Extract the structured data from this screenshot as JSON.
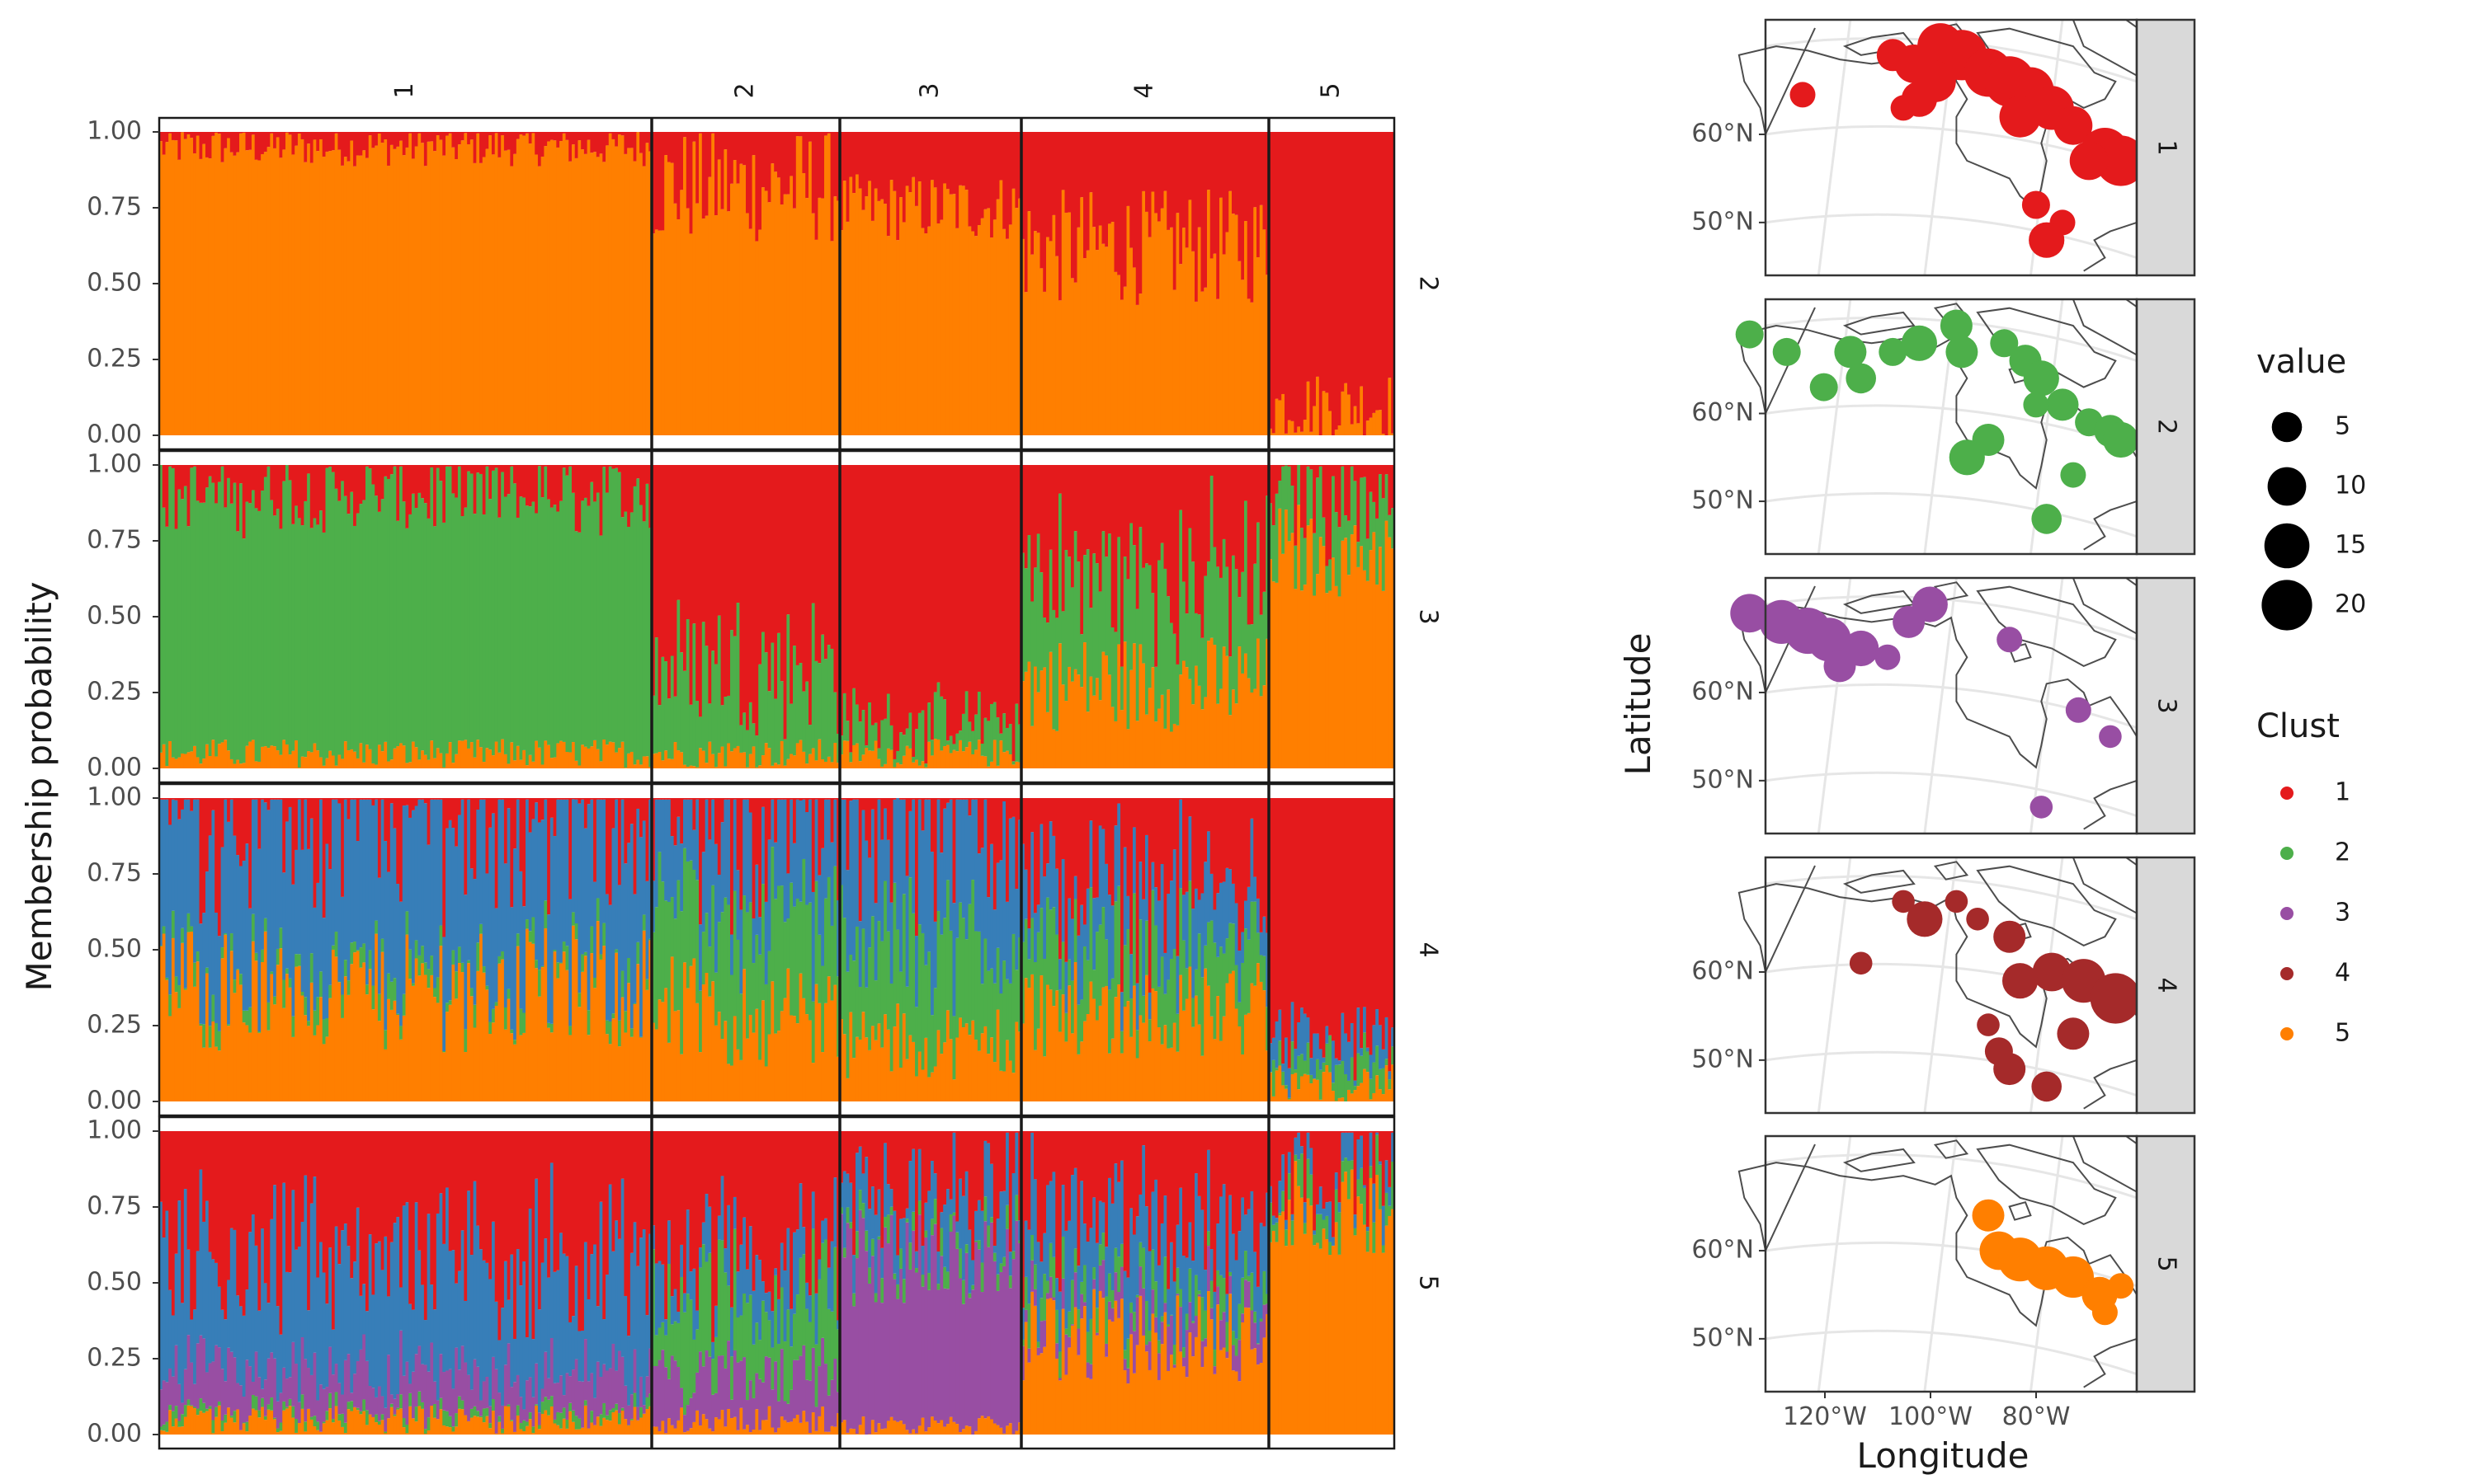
{
  "chart_data": [
    {
      "type": "bar",
      "subtype": "stacked-structure-plot",
      "ylabel": "Membership probability",
      "ylim": [
        0,
        1
      ],
      "yticks": [
        "1.00",
        "0.75",
        "0.50",
        "0.25",
        "0.00"
      ],
      "column_facets": [
        "1",
        "2",
        "3",
        "4",
        "5"
      ],
      "row_facets": [
        "2",
        "3",
        "4",
        "5"
      ],
      "individuals_per_column_facet_approx": [
        160,
        60,
        58,
        80,
        40
      ],
      "cluster_colors": {
        "1": "#E41A1C",
        "2": "#4DAF4A",
        "3": "#984EA3",
        "4": "#377EB8",
        "5": "#FF7F00"
      },
      "panels": [
        {
          "row": "2",
          "col": "1",
          "stack": [
            {
              "cluster": "5",
              "mean": 0.95,
              "spread": 0.04
            },
            {
              "cluster": "1",
              "mean": 0.05
            }
          ]
        },
        {
          "row": "2",
          "col": "2",
          "stack": [
            {
              "cluster": "5",
              "mean": 0.82,
              "spread": 0.12
            },
            {
              "cluster": "1",
              "mean": 0.18
            }
          ]
        },
        {
          "row": "2",
          "col": "3",
          "stack": [
            {
              "cluster": "5",
              "mean": 0.75,
              "spread": 0.07
            },
            {
              "cluster": "1",
              "mean": 0.25
            }
          ]
        },
        {
          "row": "2",
          "col": "4",
          "stack": [
            {
              "cluster": "5",
              "mean": 0.62,
              "spread": 0.12
            },
            {
              "cluster": "1",
              "mean": 0.38
            }
          ]
        },
        {
          "row": "2",
          "col": "5",
          "stack": [
            {
              "cluster": "5",
              "mean": 0.1,
              "spread": 0.07
            },
            {
              "cluster": "1",
              "mean": 0.9
            }
          ]
        },
        {
          "row": "3",
          "col": "1",
          "stack": [
            {
              "cluster": "5",
              "mean": 0.05,
              "spread": 0.03
            },
            {
              "cluster": "2",
              "mean": 0.85,
              "spread": 0.07
            },
            {
              "cluster": "1",
              "mean": 0.1
            }
          ]
        },
        {
          "row": "3",
          "col": "2",
          "stack": [
            {
              "cluster": "5",
              "mean": 0.05,
              "spread": 0.03
            },
            {
              "cluster": "2",
              "mean": 0.3,
              "spread": 0.14
            },
            {
              "cluster": "1",
              "mean": 0.65
            }
          ]
        },
        {
          "row": "3",
          "col": "3",
          "stack": [
            {
              "cluster": "5",
              "mean": 0.05,
              "spread": 0.03
            },
            {
              "cluster": "2",
              "mean": 0.1,
              "spread": 0.06
            },
            {
              "cluster": "1",
              "mean": 0.85
            }
          ]
        },
        {
          "row": "3",
          "col": "4",
          "stack": [
            {
              "cluster": "5",
              "mean": 0.28,
              "spread": 0.1
            },
            {
              "cluster": "2",
              "mean": 0.35,
              "spread": 0.13
            },
            {
              "cluster": "1",
              "mean": 0.37
            }
          ]
        },
        {
          "row": "3",
          "col": "5",
          "stack": [
            {
              "cluster": "5",
              "mean": 0.72,
              "spread": 0.1
            },
            {
              "cluster": "2",
              "mean": 0.2,
              "spread": 0.08
            },
            {
              "cluster": "1",
              "mean": 0.08
            }
          ]
        },
        {
          "row": "4",
          "col": "1",
          "stack": [
            {
              "cluster": "5",
              "mean": 0.4,
              "spread": 0.15
            },
            {
              "cluster": "2",
              "mean": 0.05,
              "spread": 0.03
            },
            {
              "cluster": "4",
              "mean": 0.5,
              "spread": 0.12
            },
            {
              "cluster": "1",
              "mean": 0.05
            }
          ]
        },
        {
          "row": "4",
          "col": "2",
          "stack": [
            {
              "cluster": "5",
              "mean": 0.3,
              "spread": 0.12
            },
            {
              "cluster": "2",
              "mean": 0.35,
              "spread": 0.12
            },
            {
              "cluster": "4",
              "mean": 0.28,
              "spread": 0.1
            },
            {
              "cluster": "1",
              "mean": 0.07
            }
          ]
        },
        {
          "row": "4",
          "col": "3",
          "stack": [
            {
              "cluster": "5",
              "mean": 0.2,
              "spread": 0.08
            },
            {
              "cluster": "2",
              "mean": 0.35,
              "spread": 0.12
            },
            {
              "cluster": "4",
              "mean": 0.4,
              "spread": 0.12
            },
            {
              "cluster": "1",
              "mean": 0.05
            }
          ]
        },
        {
          "row": "4",
          "col": "4",
          "stack": [
            {
              "cluster": "5",
              "mean": 0.3,
              "spread": 0.1
            },
            {
              "cluster": "2",
              "mean": 0.2,
              "spread": 0.08
            },
            {
              "cluster": "4",
              "mean": 0.2,
              "spread": 0.08
            },
            {
              "cluster": "1",
              "mean": 0.3
            }
          ]
        },
        {
          "row": "4",
          "col": "5",
          "stack": [
            {
              "cluster": "5",
              "mean": 0.06,
              "spread": 0.04
            },
            {
              "cluster": "2",
              "mean": 0.06,
              "spread": 0.04
            },
            {
              "cluster": "4",
              "mean": 0.08,
              "spread": 0.05
            },
            {
              "cluster": "1",
              "mean": 0.8
            }
          ]
        },
        {
          "row": "5",
          "col": "1",
          "stack": [
            {
              "cluster": "5",
              "mean": 0.05,
              "spread": 0.03
            },
            {
              "cluster": "2",
              "mean": 0.02,
              "spread": 0.02
            },
            {
              "cluster": "3",
              "mean": 0.12,
              "spread": 0.06
            },
            {
              "cluster": "4",
              "mean": 0.38,
              "spread": 0.15
            },
            {
              "cluster": "1",
              "mean": 0.43
            }
          ]
        },
        {
          "row": "5",
          "col": "2",
          "stack": [
            {
              "cluster": "5",
              "mean": 0.05,
              "spread": 0.03
            },
            {
              "cluster": "3",
              "mean": 0.15,
              "spread": 0.06
            },
            {
              "cluster": "2",
              "mean": 0.25,
              "spread": 0.1
            },
            {
              "cluster": "4",
              "mean": 0.15,
              "spread": 0.08
            },
            {
              "cluster": "1",
              "mean": 0.4
            }
          ]
        },
        {
          "row": "5",
          "col": "3",
          "stack": [
            {
              "cluster": "5",
              "mean": 0.03,
              "spread": 0.02
            },
            {
              "cluster": "3",
              "mean": 0.55,
              "spread": 0.1
            },
            {
              "cluster": "2",
              "mean": 0.05,
              "spread": 0.03
            },
            {
              "cluster": "4",
              "mean": 0.15,
              "spread": 0.08
            },
            {
              "cluster": "1",
              "mean": 0.22
            }
          ]
        },
        {
          "row": "5",
          "col": "4",
          "stack": [
            {
              "cluster": "5",
              "mean": 0.32,
              "spread": 0.1
            },
            {
              "cluster": "3",
              "mean": 0.08,
              "spread": 0.05
            },
            {
              "cluster": "2",
              "mean": 0.08,
              "spread": 0.05
            },
            {
              "cluster": "4",
              "mean": 0.22,
              "spread": 0.08
            },
            {
              "cluster": "1",
              "mean": 0.3
            }
          ]
        },
        {
          "row": "5",
          "col": "5",
          "stack": [
            {
              "cluster": "5",
              "mean": 0.75,
              "spread": 0.1
            },
            {
              "cluster": "2",
              "mean": 0.08,
              "spread": 0.05
            },
            {
              "cluster": "4",
              "mean": 0.07,
              "spread": 0.04
            },
            {
              "cluster": "1",
              "mean": 0.1
            }
          ]
        }
      ]
    },
    {
      "type": "scatter",
      "subtype": "faceted-point-map",
      "xlabel": "Longitude",
      "ylabel": "Latitude",
      "x_ticks": [
        "120°W",
        "100°W",
        "80°W"
      ],
      "y_ticks": [
        "60°N",
        "50°N"
      ],
      "xlim": [
        -130,
        -60
      ],
      "ylim": [
        44,
        73
      ],
      "facets": [
        "1",
        "2",
        "3",
        "4",
        "5"
      ],
      "size_legend": {
        "title": "value",
        "values": [
          5,
          10,
          15,
          20
        ]
      },
      "color_legend": {
        "title": "Clust",
        "levels": [
          "1",
          "2",
          "3",
          "4",
          "5"
        ],
        "colors": [
          "#E41A1C",
          "#4DAF4A",
          "#984EA3",
          "#A52A2A",
          "#FF7F00"
        ]
      },
      "points": {
        "1": [
          [
            -123,
            64.5,
            3
          ],
          [
            -106,
            69,
            6
          ],
          [
            -102,
            68,
            10
          ],
          [
            -97,
            70,
            16
          ],
          [
            -93,
            69,
            20
          ],
          [
            -98,
            66,
            12
          ],
          [
            -101,
            64,
            8
          ],
          [
            -88,
            67,
            18
          ],
          [
            -84,
            66,
            20
          ],
          [
            -80,
            65,
            16
          ],
          [
            -76,
            63,
            14
          ],
          [
            -82,
            62,
            12
          ],
          [
            -72,
            61,
            10
          ],
          [
            -66,
            58,
            18
          ],
          [
            -63,
            57,
            20
          ],
          [
            -69,
            57,
            10
          ],
          [
            -79,
            52,
            4
          ],
          [
            -74,
            50,
            3
          ],
          [
            -77,
            48,
            8
          ],
          [
            -104,
            63,
            3
          ]
        ],
        "2": [
          [
            -133,
            69,
            4
          ],
          [
            -126,
            67,
            4
          ],
          [
            -114,
            67,
            6
          ],
          [
            -106,
            67,
            4
          ],
          [
            -101,
            68,
            8
          ],
          [
            -94,
            70,
            6
          ],
          [
            -93,
            67,
            6
          ],
          [
            -85,
            68,
            4
          ],
          [
            -81,
            66,
            6
          ],
          [
            -78,
            64,
            8
          ],
          [
            -74,
            61,
            6
          ],
          [
            -69,
            59,
            4
          ],
          [
            -65,
            58,
            6
          ],
          [
            -63,
            57,
            8
          ],
          [
            -79,
            61,
            3
          ],
          [
            -88,
            57,
            6
          ],
          [
            -92,
            55,
            8
          ],
          [
            -72,
            53,
            3
          ],
          [
            -77,
            48,
            5
          ],
          [
            -119,
            63,
            4
          ],
          [
            -112,
            64,
            5
          ]
        ],
        "3": [
          [
            -133,
            69,
            10
          ],
          [
            -127,
            68,
            14
          ],
          [
            -122,
            67,
            16
          ],
          [
            -118,
            66,
            14
          ],
          [
            -112,
            65,
            8
          ],
          [
            -116,
            63,
            6
          ],
          [
            -107,
            64,
            3
          ],
          [
            -103,
            68,
            6
          ],
          [
            -99,
            70,
            8
          ],
          [
            -84,
            66,
            3
          ],
          [
            -71,
            58,
            3
          ],
          [
            -65,
            55,
            2
          ],
          [
            -78,
            47,
            2
          ]
        ],
        "4": [
          [
            -104,
            68,
            2
          ],
          [
            -100,
            66,
            8
          ],
          [
            -94,
            68,
            2
          ],
          [
            -90,
            66,
            2
          ],
          [
            -84,
            64,
            6
          ],
          [
            -112,
            61,
            2
          ],
          [
            -76,
            60,
            10
          ],
          [
            -70,
            59,
            14
          ],
          [
            -64,
            57,
            20
          ],
          [
            -82,
            59,
            8
          ],
          [
            -88,
            54,
            2
          ],
          [
            -86,
            51,
            4
          ],
          [
            -84,
            49,
            6
          ],
          [
            -72,
            53,
            6
          ],
          [
            -77,
            47,
            5
          ]
        ],
        "5": [
          [
            -88,
            64,
            6
          ],
          [
            -86,
            60,
            10
          ],
          [
            -82,
            59,
            14
          ],
          [
            -77,
            58,
            14
          ],
          [
            -72,
            57,
            12
          ],
          [
            -67,
            55,
            8
          ],
          [
            -63,
            56,
            3
          ],
          [
            -66,
            53,
            3
          ]
        ]
      }
    }
  ]
}
